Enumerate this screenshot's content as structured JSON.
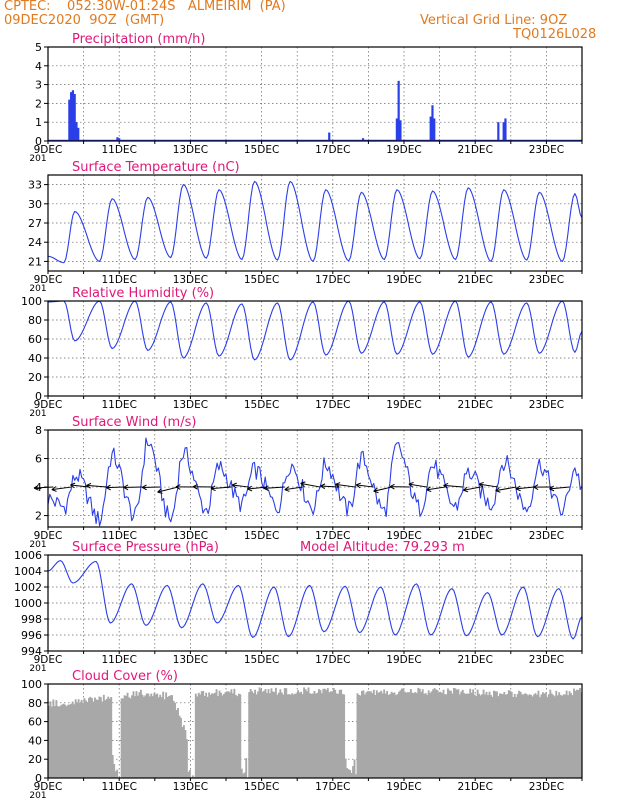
{
  "header": {
    "line1": "CPTEC:    052:30W-01:24S   ALMEIRIM  (PA)",
    "line2": "09DEC2020  9OZ  (GMT)",
    "grid_note": "Vertical Grid Line: 9OZ",
    "code": "TQ0126L028"
  },
  "x_axis": {
    "day_start": 9,
    "day_end": 24,
    "tick_labels": [
      "9DEC",
      "11DEC",
      "13DEC",
      "15DEC",
      "17DEC",
      "19DEC",
      "21DEC",
      "23DEC"
    ],
    "tick_days": [
      9,
      11,
      13,
      15,
      17,
      19,
      21,
      23
    ],
    "cut_label": "201"
  },
  "colors": {
    "series": "#2b3fe8",
    "title": "#e0187a",
    "cloud": "#a8a8a8",
    "grid": "#666666"
  },
  "chart_data": [
    {
      "type": "bar",
      "title": "Precipitation  (mm/h)",
      "ylim": [
        0,
        5
      ],
      "yticks": [
        0,
        1,
        2,
        3,
        4,
        5
      ],
      "events": [
        {
          "x": 9.6,
          "y": 2.2
        },
        {
          "x": 9.65,
          "y": 2.6
        },
        {
          "x": 9.7,
          "y": 2.7
        },
        {
          "x": 9.75,
          "y": 2.5
        },
        {
          "x": 9.8,
          "y": 1.0
        },
        {
          "x": 9.85,
          "y": 0.7
        },
        {
          "x": 10.95,
          "y": 0.2
        },
        {
          "x": 11.0,
          "y": 0.15
        },
        {
          "x": 16.9,
          "y": 0.45
        },
        {
          "x": 17.85,
          "y": 0.15
        },
        {
          "x": 18.8,
          "y": 1.2
        },
        {
          "x": 18.85,
          "y": 3.2
        },
        {
          "x": 18.9,
          "y": 1.1
        },
        {
          "x": 19.75,
          "y": 1.3
        },
        {
          "x": 19.8,
          "y": 1.9
        },
        {
          "x": 19.85,
          "y": 1.2
        },
        {
          "x": 21.65,
          "y": 1.0
        },
        {
          "x": 21.8,
          "y": 1.0
        },
        {
          "x": 21.85,
          "y": 1.2
        }
      ]
    },
    {
      "type": "line",
      "title": "Surface Temperature  (nC)",
      "ylim": [
        19.5,
        34.5
      ],
      "yticks": [
        21,
        24,
        27,
        30,
        33
      ],
      "min_days": [
        9.45,
        10.45,
        11.45,
        12.45,
        13.45,
        14.45,
        15.45,
        16.45,
        17.45,
        18.45,
        19.45,
        20.45,
        21.45,
        22.45,
        23.45
      ],
      "max_days": [
        9.75,
        10.8,
        11.8,
        12.8,
        13.8,
        14.8,
        15.8,
        16.8,
        17.8,
        18.8,
        19.8,
        20.8,
        21.8,
        22.8,
        23.8
      ],
      "mins": [
        20.8,
        21.0,
        21.3,
        21.6,
        21.5,
        21.3,
        21.2,
        21.0,
        21.1,
        21.3,
        21.4,
        21.3,
        21.0,
        21.2,
        21.0
      ],
      "maxs": [
        28.8,
        30.8,
        31.0,
        33.0,
        32.2,
        33.5,
        33.5,
        32.2,
        31.8,
        32.2,
        32.0,
        32.5,
        32.2,
        31.8,
        31.6
      ],
      "start": 21.8,
      "end": 27.8
    },
    {
      "type": "line",
      "title": "Relative Humidity  (%)",
      "ylim": [
        0,
        100
      ],
      "yticks": [
        0,
        20,
        40,
        60,
        80,
        100
      ],
      "min_days": [
        9.75,
        10.8,
        11.8,
        12.8,
        13.8,
        14.8,
        15.8,
        16.8,
        17.8,
        18.8,
        19.8,
        20.8,
        21.8,
        22.8,
        23.8
      ],
      "max_days": [
        9.45,
        10.45,
        11.45,
        12.45,
        13.45,
        14.45,
        15.45,
        16.45,
        17.45,
        18.45,
        19.45,
        20.45,
        21.45,
        22.45,
        23.45
      ],
      "mins": [
        58,
        50,
        48,
        40,
        42,
        38,
        38,
        43,
        45,
        44,
        44,
        41,
        44,
        45,
        46
      ],
      "maxs": [
        100,
        100,
        100,
        99,
        98,
        97,
        98,
        99,
        100,
        99,
        99,
        100,
        99,
        98,
        100
      ],
      "start": 99,
      "end": 68
    },
    {
      "type": "line",
      "title": "Surface Wind  (m/s)",
      "ylim": [
        1.2,
        8
      ],
      "yticks": [
        2,
        4,
        6,
        8
      ],
      "min_days": [
        9.45,
        10.45,
        11.45,
        12.45,
        13.45,
        14.45,
        15.45,
        16.45,
        17.45,
        18.45,
        19.45,
        20.45,
        21.45,
        22.45,
        23.45
      ],
      "max_days": [
        9.8,
        10.8,
        11.8,
        12.8,
        13.8,
        14.8,
        15.8,
        16.8,
        17.8,
        18.8,
        19.8,
        20.8,
        21.8,
        22.8,
        23.8
      ],
      "mins": [
        2.6,
        1.7,
        1.9,
        1.7,
        2.4,
        2.8,
        2.6,
        2.6,
        2.4,
        2.3,
        2.5,
        2.6,
        2.8,
        2.5,
        2.3
      ],
      "maxs": [
        4.8,
        6.2,
        7.2,
        6.4,
        5.4,
        5.2,
        5.6,
        5.6,
        6.0,
        6.8,
        5.5,
        5.0,
        5.8,
        5.6,
        5.3
      ],
      "start": 3.2,
      "end": 4.0,
      "wind_vectors": {
        "start": 9.15,
        "step": 0.5,
        "count": 30,
        "y": 4.0
      }
    },
    {
      "type": "line",
      "title": "Surface Pressure  (hPa)",
      "annotation": "Model Altitude: 79.293  m",
      "ylim": [
        994,
        1006
      ],
      "yticks": [
        994,
        996,
        998,
        1000,
        1002,
        1004,
        1006
      ],
      "min_days": [
        9.7,
        10.75,
        11.75,
        12.75,
        13.75,
        14.75,
        15.75,
        16.75,
        17.75,
        18.75,
        19.75,
        20.75,
        21.75,
        22.75,
        23.75
      ],
      "max_days": [
        9.35,
        10.35,
        11.35,
        12.35,
        13.35,
        14.35,
        15.35,
        16.35,
        17.35,
        18.35,
        19.35,
        20.35,
        21.35,
        22.35,
        23.35
      ],
      "mins": [
        1002.5,
        997.5,
        997.2,
        996.9,
        997.5,
        995.7,
        995.8,
        996.4,
        996.3,
        996.0,
        996.0,
        995.9,
        996.0,
        995.8,
        995.5
      ],
      "maxs": [
        1005.3,
        1005.2,
        1002.4,
        1002.2,
        1002.4,
        1002.2,
        1002.0,
        1002.2,
        1002.1,
        1002.0,
        1002.4,
        1001.8,
        1001.3,
        1002.0,
        1001.8
      ],
      "start": 1004.0,
      "end": 998.3
    },
    {
      "type": "area",
      "title": "Cloud Cover  (%)",
      "ylim": [
        0,
        100
      ],
      "yticks": [
        0,
        20,
        40,
        60,
        80,
        100
      ],
      "segments": [
        {
          "x": [
            9.0,
            9.5,
            10.0,
            10.5,
            10.75
          ],
          "y": [
            80,
            78,
            82,
            85,
            84
          ]
        },
        {
          "x": [
            10.75,
            10.85,
            10.95
          ],
          "y": [
            30,
            10,
            3
          ]
        },
        {
          "x": [
            11.0,
            11.2,
            11.5,
            12.0,
            12.5,
            12.9
          ],
          "y": [
            86,
            88,
            90,
            90,
            85,
            40
          ]
        },
        {
          "x": [
            12.9,
            13.0,
            13.05
          ],
          "y": [
            10,
            2,
            5
          ]
        },
        {
          "x": [
            13.1,
            13.5,
            14.0,
            14.4
          ],
          "y": [
            88,
            90,
            92,
            90
          ]
        },
        {
          "x": [
            14.4,
            14.5,
            14.55
          ],
          "y": [
            15,
            3,
            20
          ]
        },
        {
          "x": [
            14.6,
            15.0,
            15.5,
            16.0,
            16.5,
            17.0,
            17.3
          ],
          "y": [
            92,
            93,
            92,
            92,
            93,
            92,
            91
          ]
        },
        {
          "x": [
            17.3,
            17.4,
            17.5,
            17.6
          ],
          "y": [
            25,
            8,
            5,
            20
          ]
        },
        {
          "x": [
            17.65,
            18.0,
            18.5,
            19.0,
            19.5,
            20.0,
            20.5,
            21.0,
            21.5,
            22.0,
            22.5,
            23.0,
            23.5,
            24.0
          ],
          "y": [
            92,
            90,
            91,
            92,
            92,
            93,
            92,
            91,
            90,
            90,
            88,
            90,
            91,
            92
          ]
        }
      ]
    }
  ]
}
